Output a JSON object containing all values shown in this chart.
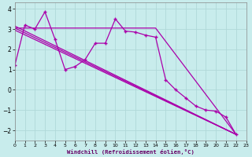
{
  "bg_color": "#c8ecec",
  "grid_color": "#b0d8d8",
  "line_color": "#aa00aa",
  "xlabel": "Windchill (Refroidissement éolien,°C)",
  "xlim": [
    0,
    23
  ],
  "ylim": [
    -2.5,
    4.3
  ],
  "yticks": [
    -2,
    -1,
    0,
    1,
    2,
    3,
    4
  ],
  "xticks": [
    0,
    1,
    2,
    3,
    4,
    5,
    6,
    7,
    8,
    9,
    10,
    11,
    12,
    13,
    14,
    15,
    16,
    17,
    18,
    19,
    20,
    21,
    22,
    23
  ],
  "line1_x": [
    0,
    1,
    2,
    3,
    4,
    5,
    6,
    7,
    8,
    9,
    10,
    11,
    12,
    13,
    14,
    15,
    16,
    17,
    18,
    19,
    20,
    21,
    22
  ],
  "line1_y": [
    1.2,
    3.2,
    3.0,
    3.85,
    2.5,
    1.0,
    1.15,
    1.5,
    2.3,
    2.3,
    3.5,
    2.9,
    2.85,
    2.7,
    2.6,
    0.5,
    0.0,
    -0.4,
    -0.8,
    -1.0,
    -1.05,
    -1.35,
    -2.2
  ],
  "line2_x": [
    0,
    1,
    2,
    3,
    4,
    5,
    6,
    7,
    8,
    9,
    10,
    11,
    12,
    13,
    14,
    22
  ],
  "line2_y": [
    3.05,
    3.05,
    3.05,
    3.05,
    3.05,
    3.05,
    3.05,
    3.05,
    3.05,
    3.05,
    3.05,
    3.05,
    3.05,
    3.05,
    3.05,
    -2.2
  ],
  "line3_x": [
    0,
    22
  ],
  "line3_y": [
    3.05,
    -2.2
  ],
  "line4_x": [
    0,
    22
  ],
  "line4_y": [
    3.15,
    -2.2
  ],
  "line5_x": [
    0,
    22
  ],
  "line5_y": [
    2.95,
    -2.2
  ]
}
